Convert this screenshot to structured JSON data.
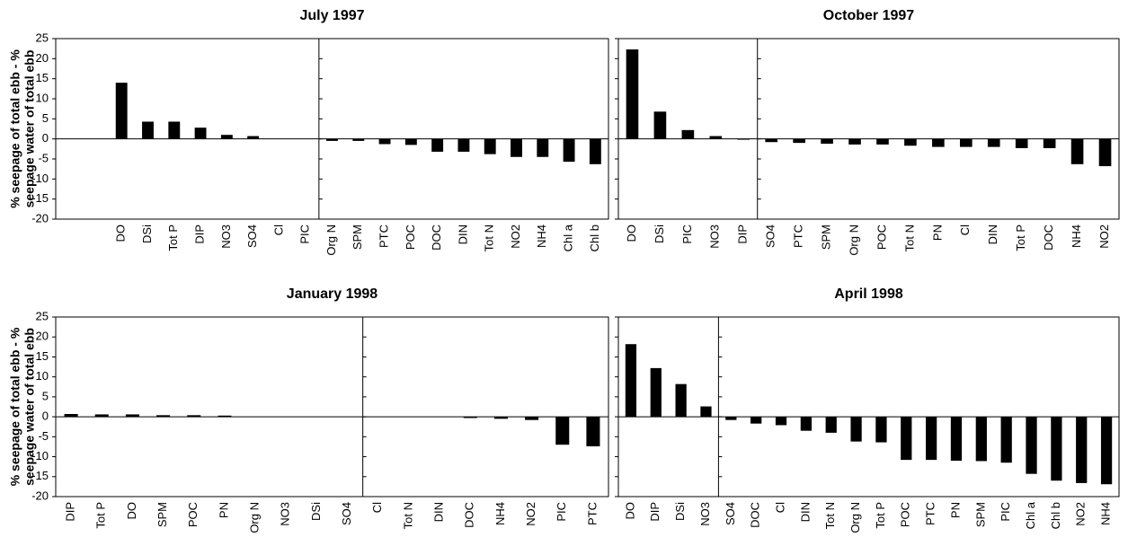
{
  "chart_data": [
    {
      "type": "bar",
      "title": "July 1997",
      "ylabel": [
        "% seepage of total ebb - %",
        "seepage water of total ebb"
      ],
      "categories": [
        null,
        null,
        "DO",
        "DSi",
        "Tot P",
        "DIP",
        "NO3",
        "SO4",
        "Cl",
        "PIC",
        "Org N",
        "SPM",
        "PTC",
        "POC",
        "DOC",
        "DIN",
        "Tot N",
        "NO2",
        "NH4",
        "Chl a",
        "Chl b"
      ],
      "values": [
        null,
        null,
        14,
        4.3,
        4.3,
        2.8,
        1,
        0.7,
        0,
        0,
        -0.5,
        -0.5,
        -1.3,
        -1.5,
        -3.2,
        -3.2,
        -3.8,
        -4.5,
        -4.5,
        -5.7,
        -6.3
      ],
      "color": "#000000",
      "ylim": [
        -20,
        25
      ],
      "yticks": [
        -20,
        -15,
        -10,
        -5,
        0,
        5,
        10,
        15,
        20,
        25
      ]
    },
    {
      "type": "bar",
      "title": "October 1997",
      "categories": [
        "DO",
        "DSi",
        "PIC",
        "NO3",
        "DIP",
        "SO4",
        "PTC",
        "SPM",
        "Org N",
        "POC",
        "Tot N",
        "PN",
        "Cl",
        "DIN",
        "Tot P",
        "DOC",
        "NH4",
        "NO2"
      ],
      "values": [
        22.3,
        6.8,
        2.2,
        0.7,
        -0.2,
        -0.8,
        -1,
        -1.2,
        -1.4,
        -1.4,
        -1.7,
        -2,
        -2,
        -2,
        -2.3,
        -2.3,
        -6.3,
        -6.8
      ],
      "color": "#000000",
      "ylim": [
        -20,
        25
      ],
      "yticks": [
        -20,
        -15,
        -10,
        -5,
        0,
        5,
        10,
        15,
        20,
        25
      ]
    },
    {
      "type": "bar",
      "title": "January 1998",
      "ylabel": [
        "% seepage of total ebb - %",
        "seepage water of total ebb"
      ],
      "categories": [
        "DIP",
        "Tot P",
        "DO",
        "SPM",
        "POC",
        "PN",
        "Org N",
        "NO3",
        "DSi",
        "SO4",
        "Cl",
        "Tot N",
        "DIN",
        "DOC",
        "NH4",
        "NO2",
        "PIC",
        "PTC"
      ],
      "values": [
        0.7,
        0.6,
        0.6,
        0.4,
        0.4,
        0.3,
        0,
        0,
        0,
        0,
        0,
        0,
        0,
        -0.3,
        -0.5,
        -0.8,
        -7,
        -7.4
      ],
      "color": "#000000",
      "ylim": [
        -20,
        25
      ],
      "yticks": [
        -20,
        -15,
        -10,
        -5,
        0,
        5,
        10,
        15,
        20,
        25
      ]
    },
    {
      "type": "bar",
      "title": "April 1998",
      "categories": [
        "DO",
        "DIP",
        "DSi",
        "NO3",
        "SO4",
        "DOC",
        "Cl",
        "DIN",
        "Tot N",
        "Org N",
        "Tot P",
        "POC",
        "PTC",
        "PN",
        "SPM",
        "PIC",
        "Chl a",
        "Chl b",
        "NO2",
        "NH4"
      ],
      "values": [
        18.2,
        12.2,
        8.2,
        2.6,
        -0.8,
        -1.7,
        -2.1,
        -3.5,
        -4,
        -6.2,
        -6.4,
        -10.8,
        -10.8,
        -11,
        -11.1,
        -11.5,
        -14.3,
        -16,
        -16.6,
        -16.9
      ],
      "color": "#000000",
      "ylim": [
        -20,
        25
      ],
      "yticks": [
        -20,
        -15,
        -10,
        -5,
        0,
        5,
        10,
        15,
        20,
        25
      ]
    }
  ]
}
